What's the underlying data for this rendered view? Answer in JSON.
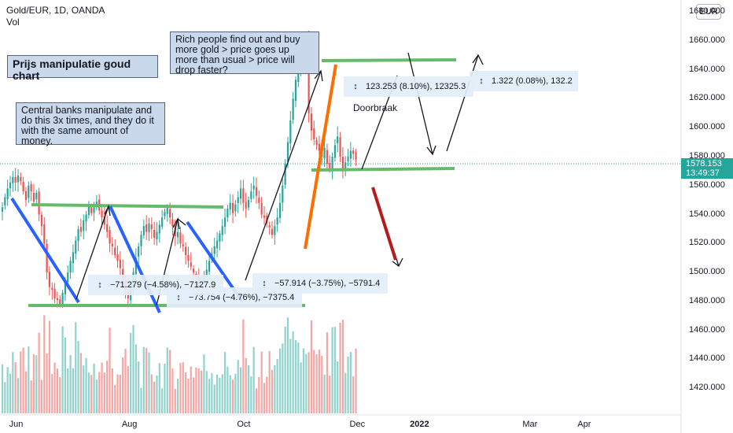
{
  "header": {
    "symbol": "Gold/EUR, 1D, OANDA",
    "volume_label": "Vol"
  },
  "currency_button": "EUR",
  "notes": {
    "title": "Prijs manipulatie goud chart",
    "central_banks": "Central banks manipulate and do this 3x times, and they do it with the same amount of money.",
    "rich_people": "Rich people find out and buy more gold > price goes up more than usual > price will drop faster?",
    "doorbraak": "Doorbraak"
  },
  "measures": [
    {
      "text": "−71.279 (−4.58%), −7127.9"
    },
    {
      "text": "−73.754 (−4.76%), −7375.4"
    },
    {
      "text": "−57.914 (−3.75%), −5791.4"
    },
    {
      "text": "123.253 (8.10%), 12325.3"
    },
    {
      "text": "1.322 (0.08%), 132.2"
    }
  ],
  "current_price": {
    "price": "1578.153",
    "countdown": "13:49:37"
  },
  "colors": {
    "up": "#26a69a",
    "down": "#ef5350",
    "vol_up": "#8fd3cc",
    "vol_down": "#f4a6a4",
    "trend": "#66bb6a",
    "blue_line": "#2962ff",
    "orange_line": "#ff6d00",
    "red_arrow": "#b71c1c",
    "note_bg": "#c9d8ea"
  },
  "chart_data": {
    "type": "candlestick",
    "symbol": "Gold/EUR",
    "interval": "1D",
    "ylim": [
      1412,
      1680
    ],
    "y_ticks": [
      {
        "label": "1420.000",
        "value": 1420
      },
      {
        "label": "1440.000",
        "value": 1440
      },
      {
        "label": "1460.000",
        "value": 1460
      },
      {
        "label": "1480.000",
        "value": 1480
      },
      {
        "label": "1500.000",
        "value": 1500
      },
      {
        "label": "1520.000",
        "value": 1520
      },
      {
        "label": "1540.000",
        "value": 1540
      },
      {
        "label": "1560.000",
        "value": 1560
      },
      {
        "label": "1580.000",
        "value": 1580
      },
      {
        "label": "1600.000",
        "value": 1600
      },
      {
        "label": "1620.000",
        "value": 1620
      },
      {
        "label": "1640.000",
        "value": 1640
      },
      {
        "label": "1660.000",
        "value": 1660
      },
      {
        "label": "1680.000",
        "value": 1680
      }
    ],
    "x_ticks": [
      {
        "label": "Jun",
        "bar": 5,
        "bold": false
      },
      {
        "label": "Aug",
        "bar": 48,
        "bold": false
      },
      {
        "label": "Oct",
        "bar": 92,
        "bold": false
      },
      {
        "label": "Dec",
        "bar": 135,
        "bold": false
      },
      {
        "label": "2022",
        "bar": 158,
        "bold": true
      },
      {
        "label": "Mar",
        "bar": 201,
        "bold": false
      },
      {
        "label": "Apr",
        "bar": 222,
        "bold": false
      }
    ],
    "closes": [
      1545,
      1552,
      1558,
      1562,
      1566,
      1562,
      1567,
      1563,
      1556,
      1550,
      1560,
      1556,
      1549,
      1555,
      1540,
      1532,
      1520,
      1500,
      1490,
      1488,
      1482,
      1481,
      1478,
      1486,
      1494,
      1500,
      1508,
      1514,
      1522,
      1530,
      1528,
      1536,
      1540,
      1546,
      1541,
      1545,
      1549,
      1543,
      1538,
      1533,
      1528,
      1520,
      1518,
      1512,
      1508,
      1503,
      1495,
      1488,
      1482,
      1490,
      1500,
      1510,
      1518,
      1526,
      1532,
      1528,
      1534,
      1530,
      1524,
      1528,
      1533,
      1538,
      1542,
      1545,
      1538,
      1532,
      1525,
      1528,
      1520,
      1518,
      1512,
      1508,
      1504,
      1500,
      1497,
      1495,
      1492,
      1498,
      1502,
      1508,
      1513,
      1518,
      1522,
      1527,
      1532,
      1538,
      1544,
      1548,
      1541,
      1547,
      1552,
      1558,
      1548,
      1544,
      1550,
      1556,
      1560,
      1553,
      1548,
      1540,
      1538,
      1534,
      1531,
      1526,
      1532,
      1538,
      1548,
      1560,
      1575,
      1590,
      1605,
      1620,
      1633,
      1642,
      1648,
      1652,
      1660,
      1610,
      1598,
      1592,
      1588,
      1584,
      1580,
      1586,
      1575,
      1572,
      1580,
      1588,
      1594,
      1580,
      1570,
      1576,
      1580,
      1584,
      1582,
      1578
    ]
  }
}
